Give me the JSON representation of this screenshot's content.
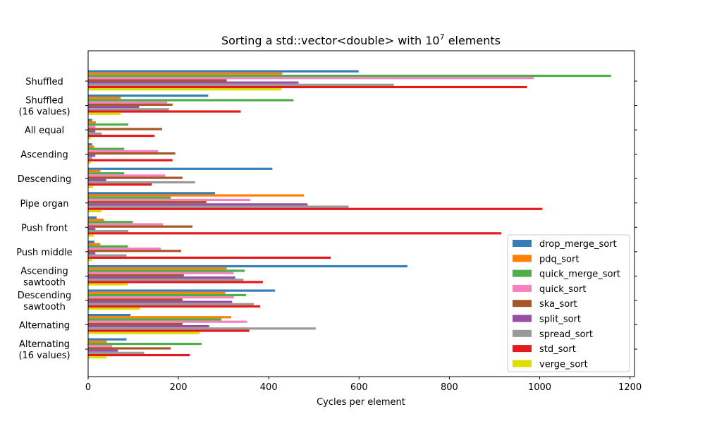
{
  "chart_data": {
    "type": "bar",
    "orientation": "horizontal",
    "title": "Sorting a std::vector<double> with 10",
    "title_superscript": "7",
    "title_suffix": " elements",
    "xlabel": "Cycles per element",
    "ylabel": "",
    "xlim": [
      0,
      1210
    ],
    "xticks": [
      0,
      200,
      400,
      600,
      800,
      1000,
      1200
    ],
    "grid": false,
    "legend_position": "lower-right",
    "categories": [
      [
        "Shuffled"
      ],
      [
        "Shuffled",
        "(16 values)"
      ],
      [
        "All equal"
      ],
      [
        "Ascending"
      ],
      [
        "Descending"
      ],
      [
        "Pipe organ"
      ],
      [
        "Push front"
      ],
      [
        "Push middle"
      ],
      [
        "Ascending",
        "sawtooth"
      ],
      [
        "Descending",
        "sawtooth"
      ],
      [
        "Alternating"
      ],
      [
        "Alternating",
        "(16 values)"
      ]
    ],
    "series": [
      {
        "name": "drop_merge_sort",
        "color": "#377eb8",
        "values": [
          599,
          266,
          9,
          9,
          408,
          281,
          19,
          14,
          707,
          414,
          94,
          85
        ]
      },
      {
        "name": "pdq_sort",
        "color": "#ff7f00",
        "values": [
          430,
          72,
          17,
          13,
          27,
          478,
          35,
          27,
          307,
          304,
          317,
          41
        ]
      },
      {
        "name": "quick_merge_sort",
        "color": "#4daf4a",
        "values": [
          1158,
          455,
          89,
          80,
          80,
          183,
          99,
          88,
          347,
          350,
          295,
          251
        ]
      },
      {
        "name": "quick_sort",
        "color": "#f781bf",
        "values": [
          987,
          175,
          16,
          155,
          171,
          359,
          166,
          161,
          322,
          323,
          352,
          53
        ]
      },
      {
        "name": "ska_sort",
        "color": "#a65628",
        "values": [
          307,
          187,
          164,
          193,
          209,
          262,
          231,
          206,
          212,
          209,
          209,
          183
        ]
      },
      {
        "name": "split_sort",
        "color": "#984ea3",
        "values": [
          466,
          113,
          16,
          16,
          40,
          486,
          16,
          16,
          326,
          319,
          268,
          66
        ]
      },
      {
        "name": "spread_sort",
        "color": "#999999",
        "values": [
          677,
          179,
          30,
          9,
          237,
          577,
          89,
          85,
          344,
          367,
          504,
          124
        ]
      },
      {
        "name": "std_sort",
        "color": "#e41a1c",
        "values": [
          972,
          338,
          147,
          187,
          141,
          1006,
          915,
          537,
          387,
          381,
          357,
          225
        ]
      },
      {
        "name": "verge_sort",
        "color": "#dede00",
        "values": [
          428,
          72,
          6,
          6,
          11,
          30,
          13,
          9,
          88,
          115,
          247,
          41
        ]
      }
    ]
  }
}
